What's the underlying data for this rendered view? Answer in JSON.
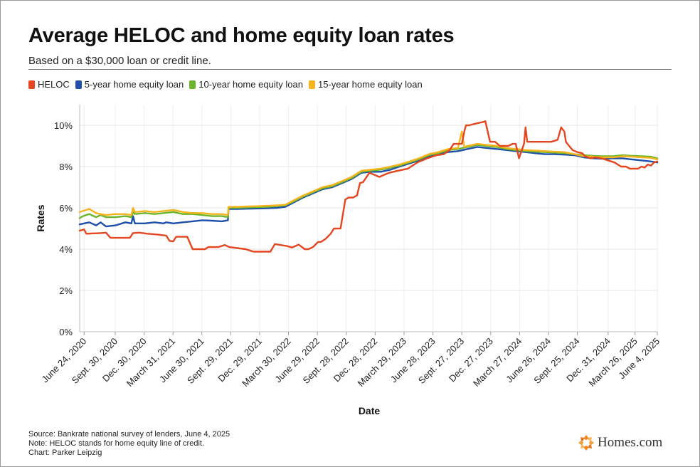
{
  "title": "Average HELOC and home equity loan rates",
  "subtitle": "Based on a $30,000 loan or credit line.",
  "legend": [
    {
      "label": "HELOC",
      "color": "#e4461f"
    },
    {
      "label": "5-year home equity loan",
      "color": "#1f4fa8"
    },
    {
      "label": "10-year home equity loan",
      "color": "#6cb42c"
    },
    {
      "label": "15-year home equity loan",
      "color": "#f5b41e"
    }
  ],
  "footer": {
    "source": "Source: Bankrate national survey of lenders, June 4, 2025",
    "note": "Note: HELOC stands for home equity line of credit.",
    "credit": "Chart: Parker Leipzig"
  },
  "logo": {
    "text": "Homes.com",
    "icon": "homes-com-logo-icon",
    "color": "#f08a24"
  },
  "chart_data": {
    "type": "line",
    "title": "Average HELOC and home equity loan rates",
    "subtitle": "Based on a $30,000 loan or credit line.",
    "xlabel": "Date",
    "ylabel": "Rates",
    "ylim": [
      0,
      11
    ],
    "yticks": [
      0,
      2,
      4,
      6,
      8,
      10
    ],
    "ytick_labels": [
      "0%",
      "2%",
      "4%",
      "6%",
      "8%",
      "10%"
    ],
    "xlim": [
      "2020-06-10",
      "2025-06-04"
    ],
    "xtick_dates": [
      "2020-06-24",
      "2020-09-30",
      "2020-12-30",
      "2021-03-31",
      "2021-06-30",
      "2021-09-29",
      "2021-12-29",
      "2022-03-30",
      "2022-06-29",
      "2022-09-28",
      "2022-12-28",
      "2023-03-29",
      "2023-06-28",
      "2023-09-27",
      "2023-12-27",
      "2024-03-27",
      "2024-06-26",
      "2024-09-25",
      "2024-12-31",
      "2025-03-26",
      "2025-06-04"
    ],
    "xtick_labels": [
      "June 24, 2020",
      "Sept. 30, 2020",
      "Dec. 30, 2020",
      "March 31, 2021",
      "June 30, 2021",
      "Sept. 29, 2021",
      "Dec. 29, 2021",
      "March 30, 2022",
      "June 29, 2022",
      "Sept. 28, 2022",
      "Dec. 28, 2022",
      "March 29, 2023",
      "June 28, 2023",
      "Sept. 27, 2023",
      "Dec. 27, 2023",
      "March 27, 2024",
      "June 26, 2024",
      "Sept. 25, 2024",
      "Dec. 31, 2024",
      "March 26, 2025",
      "June 4, 2025"
    ],
    "grid": true,
    "legend_position": "top-left",
    "series": [
      {
        "name": "HELOC",
        "color": "#e4461f",
        "x": [
          "2020-06-10",
          "2020-06-17",
          "2020-06-24",
          "2020-07-01",
          "2020-08-15",
          "2020-09-01",
          "2020-09-15",
          "2020-11-15",
          "2020-11-25",
          "2020-12-15",
          "2021-01-10",
          "2021-02-15",
          "2021-03-10",
          "2021-03-20",
          "2021-04-01",
          "2021-04-10",
          "2021-05-15",
          "2021-06-01",
          "2021-07-10",
          "2021-07-20",
          "2021-08-20",
          "2021-09-10",
          "2021-09-25",
          "2021-11-15",
          "2021-12-01",
          "2021-12-10",
          "2022-01-10",
          "2022-02-01",
          "2022-02-15",
          "2022-03-05",
          "2022-03-25",
          "2022-04-10",
          "2022-05-01",
          "2022-05-20",
          "2022-06-01",
          "2022-06-15",
          "2022-07-01",
          "2022-07-10",
          "2022-07-25",
          "2022-08-10",
          "2022-08-20",
          "2022-09-10",
          "2022-09-25",
          "2022-10-05",
          "2022-10-15",
          "2022-10-20",
          "2022-10-25",
          "2022-11-01",
          "2022-11-10",
          "2022-11-20",
          "2022-12-10",
          "2023-01-10",
          "2023-02-10",
          "2023-03-10",
          "2023-04-10",
          "2023-05-10",
          "2023-06-10",
          "2023-07-10",
          "2023-08-01",
          "2023-08-20",
          "2023-09-01",
          "2023-09-27",
          "2023-10-05",
          "2023-10-10",
          "2023-10-20",
          "2023-11-15",
          "2023-12-01",
          "2023-12-10",
          "2023-12-25",
          "2024-01-10",
          "2024-01-25",
          "2024-02-05",
          "2024-02-20",
          "2024-03-05",
          "2024-03-15",
          "2024-03-25",
          "2024-04-10",
          "2024-04-15",
          "2024-04-20",
          "2024-04-25",
          "2024-05-01",
          "2024-05-05",
          "2024-06-10",
          "2024-07-05",
          "2024-07-15",
          "2024-07-25",
          "2024-08-05",
          "2024-08-15",
          "2024-08-20",
          "2024-08-25",
          "2024-09-10",
          "2024-09-25",
          "2024-10-10",
          "2024-10-20",
          "2024-11-05",
          "2024-11-20",
          "2024-12-10",
          "2024-12-31",
          "2025-01-20",
          "2025-02-10",
          "2025-02-25",
          "2025-03-10",
          "2025-03-26",
          "2025-04-05",
          "2025-04-15",
          "2025-04-25",
          "2025-05-05",
          "2025-05-15",
          "2025-05-25",
          "2025-06-04"
        ],
        "y": [
          4.9,
          4.92,
          4.96,
          4.75,
          4.78,
          4.8,
          4.55,
          4.55,
          4.78,
          4.8,
          4.75,
          4.7,
          4.65,
          4.4,
          4.38,
          4.6,
          4.6,
          4.0,
          4.0,
          4.1,
          4.1,
          4.2,
          4.1,
          4.0,
          3.92,
          3.88,
          3.88,
          3.88,
          4.25,
          4.2,
          4.15,
          4.08,
          4.22,
          4.0,
          4.0,
          4.1,
          4.35,
          4.35,
          4.5,
          4.75,
          5.0,
          5.0,
          6.4,
          6.5,
          6.5,
          6.5,
          6.55,
          6.6,
          7.2,
          7.25,
          7.7,
          7.5,
          7.7,
          7.8,
          7.9,
          8.2,
          8.4,
          8.55,
          8.6,
          8.8,
          9.1,
          9.1,
          9.7,
          10.0,
          10.0,
          10.1,
          10.15,
          10.2,
          9.2,
          9.2,
          9.0,
          9.0,
          9.0,
          9.1,
          9.1,
          8.4,
          9.1,
          9.9,
          9.2,
          9.2,
          9.2,
          9.2,
          9.2,
          9.2,
          9.25,
          9.3,
          9.9,
          9.7,
          9.2,
          9.1,
          8.8,
          8.7,
          8.65,
          8.5,
          8.4,
          8.45,
          8.4,
          8.3,
          8.2,
          8.0,
          8.0,
          7.9,
          7.9,
          7.9,
          8.0,
          7.95,
          8.1,
          8.05,
          8.2,
          8.25
        ]
      },
      {
        "name": "5-year home equity loan",
        "color": "#1f4fa8",
        "x": [
          "2020-06-10",
          "2020-07-10",
          "2020-08-01",
          "2020-08-15",
          "2020-09-01",
          "2020-10-01",
          "2020-11-01",
          "2020-11-20",
          "2020-11-25",
          "2020-12-01",
          "2021-01-01",
          "2021-02-01",
          "2021-03-01",
          "2021-03-10",
          "2021-04-01",
          "2021-05-01",
          "2021-06-01",
          "2021-07-01",
          "2021-08-01",
          "2021-09-01",
          "2021-09-20",
          "2021-09-22",
          "2021-10-20",
          "2021-11-20",
          "2021-12-20",
          "2022-01-20",
          "2022-02-20",
          "2022-03-20",
          "2022-04-20",
          "2022-05-15",
          "2022-06-15",
          "2022-07-15",
          "2022-08-15",
          "2022-09-15",
          "2022-10-15",
          "2022-11-15",
          "2022-12-15",
          "2023-01-15",
          "2023-02-15",
          "2023-03-15",
          "2023-04-15",
          "2023-05-15",
          "2023-06-15",
          "2023-07-15",
          "2023-08-15",
          "2023-09-15",
          "2023-10-15",
          "2023-11-15",
          "2023-12-15",
          "2024-01-15",
          "2024-02-15",
          "2024-03-15",
          "2024-04-15",
          "2024-05-15",
          "2024-06-15",
          "2024-07-15",
          "2024-08-15",
          "2024-09-15",
          "2024-10-15",
          "2024-11-15",
          "2024-12-15",
          "2025-01-15",
          "2025-02-15",
          "2025-03-15",
          "2025-04-15",
          "2025-05-15",
          "2025-06-04"
        ],
        "y": [
          5.2,
          5.3,
          5.15,
          5.3,
          5.1,
          5.15,
          5.3,
          5.25,
          5.6,
          5.25,
          5.25,
          5.3,
          5.25,
          5.3,
          5.25,
          5.3,
          5.35,
          5.4,
          5.38,
          5.35,
          5.4,
          5.95,
          5.95,
          5.96,
          5.97,
          5.98,
          6.0,
          6.05,
          6.3,
          6.5,
          6.7,
          6.9,
          7.0,
          7.2,
          7.4,
          7.7,
          7.75,
          7.75,
          7.85,
          8.0,
          8.15,
          8.3,
          8.5,
          8.6,
          8.7,
          8.75,
          8.85,
          8.95,
          8.9,
          8.85,
          8.8,
          8.75,
          8.7,
          8.65,
          8.6,
          8.6,
          8.58,
          8.55,
          8.45,
          8.4,
          8.38,
          8.4,
          8.4,
          8.35,
          8.3,
          8.25,
          8.2
        ]
      },
      {
        "name": "10-year home equity loan",
        "color": "#6cb42c",
        "x": [
          "2020-06-10",
          "2020-06-20",
          "2020-07-10",
          "2020-08-01",
          "2020-08-15",
          "2020-09-01",
          "2020-10-01",
          "2020-11-01",
          "2020-11-20",
          "2020-11-25",
          "2020-12-01",
          "2021-01-01",
          "2021-02-01",
          "2021-03-01",
          "2021-04-01",
          "2021-05-01",
          "2021-06-01",
          "2021-07-01",
          "2021-08-01",
          "2021-09-01",
          "2021-09-20",
          "2021-09-22",
          "2021-10-20",
          "2021-11-20",
          "2021-12-20",
          "2022-01-20",
          "2022-02-20",
          "2022-03-20",
          "2022-04-20",
          "2022-05-15",
          "2022-06-15",
          "2022-07-15",
          "2022-08-15",
          "2022-09-15",
          "2022-10-15",
          "2022-11-15",
          "2022-12-15",
          "2023-01-15",
          "2023-02-15",
          "2023-03-15",
          "2023-04-15",
          "2023-05-15",
          "2023-06-15",
          "2023-07-15",
          "2023-08-15",
          "2023-09-15",
          "2023-10-15",
          "2023-11-15",
          "2023-12-15",
          "2024-01-15",
          "2024-02-15",
          "2024-03-15",
          "2024-04-15",
          "2024-05-15",
          "2024-06-15",
          "2024-07-15",
          "2024-08-15",
          "2024-09-15",
          "2024-10-15",
          "2024-11-15",
          "2024-12-15",
          "2025-01-15",
          "2025-02-15",
          "2025-03-15",
          "2025-04-15",
          "2025-05-15",
          "2025-06-04"
        ],
        "y": [
          5.5,
          5.6,
          5.7,
          5.55,
          5.65,
          5.55,
          5.55,
          5.6,
          5.55,
          5.8,
          5.7,
          5.75,
          5.7,
          5.75,
          5.8,
          5.7,
          5.7,
          5.65,
          5.6,
          5.6,
          5.55,
          6.0,
          6.0,
          6.02,
          6.03,
          6.05,
          6.08,
          6.12,
          6.35,
          6.55,
          6.75,
          6.95,
          7.05,
          7.25,
          7.45,
          7.75,
          7.8,
          7.85,
          7.95,
          8.05,
          8.2,
          8.35,
          8.55,
          8.65,
          8.8,
          8.85,
          8.95,
          9.05,
          9.0,
          8.95,
          8.85,
          8.8,
          8.75,
          8.72,
          8.7,
          8.68,
          8.65,
          8.6,
          8.55,
          8.52,
          8.5,
          8.5,
          8.55,
          8.52,
          8.5,
          8.48,
          8.4
        ]
      },
      {
        "name": "15-year home equity loan",
        "color": "#f5b41e",
        "x": [
          "2020-06-10",
          "2020-06-20",
          "2020-07-10",
          "2020-08-01",
          "2020-08-15",
          "2020-09-01",
          "2020-10-01",
          "2020-11-01",
          "2020-11-20",
          "2020-11-25",
          "2020-12-01",
          "2021-01-01",
          "2021-02-01",
          "2021-03-01",
          "2021-04-01",
          "2021-05-01",
          "2021-06-01",
          "2021-07-01",
          "2021-08-01",
          "2021-09-01",
          "2021-09-20",
          "2021-09-22",
          "2021-10-20",
          "2021-11-20",
          "2021-12-20",
          "2022-01-20",
          "2022-02-20",
          "2022-03-20",
          "2022-04-20",
          "2022-05-15",
          "2022-06-15",
          "2022-07-15",
          "2022-08-15",
          "2022-09-15",
          "2022-10-15",
          "2022-11-15",
          "2022-12-15",
          "2023-01-15",
          "2023-02-15",
          "2023-03-15",
          "2023-04-15",
          "2023-05-15",
          "2023-06-15",
          "2023-07-15",
          "2023-08-15",
          "2023-09-15",
          "2023-09-27",
          "2023-10-05",
          "2023-10-15",
          "2023-11-15",
          "2023-12-15",
          "2024-01-15",
          "2024-02-15",
          "2024-03-15",
          "2024-04-15",
          "2024-05-15",
          "2024-06-15",
          "2024-07-15",
          "2024-08-15",
          "2024-09-15",
          "2024-10-15",
          "2024-11-15",
          "2024-12-15",
          "2025-01-15",
          "2025-02-15",
          "2025-03-15",
          "2025-04-15",
          "2025-05-15",
          "2025-06-04"
        ],
        "y": [
          5.8,
          5.85,
          5.95,
          5.75,
          5.7,
          5.65,
          5.7,
          5.7,
          5.65,
          6.0,
          5.8,
          5.85,
          5.8,
          5.85,
          5.9,
          5.8,
          5.75,
          5.75,
          5.7,
          5.7,
          5.65,
          6.05,
          6.05,
          6.07,
          6.08,
          6.1,
          6.12,
          6.15,
          6.4,
          6.6,
          6.8,
          7.0,
          7.1,
          7.3,
          7.5,
          7.8,
          7.85,
          7.9,
          8.0,
          8.1,
          8.25,
          8.4,
          8.6,
          8.7,
          8.85,
          8.9,
          9.7,
          8.95,
          9.0,
          9.1,
          9.05,
          9.0,
          8.9,
          8.85,
          8.8,
          8.78,
          8.75,
          8.72,
          8.7,
          8.6,
          8.5,
          8.48,
          8.45,
          8.45,
          8.5,
          8.48,
          8.45,
          8.42,
          8.35
        ]
      }
    ]
  }
}
